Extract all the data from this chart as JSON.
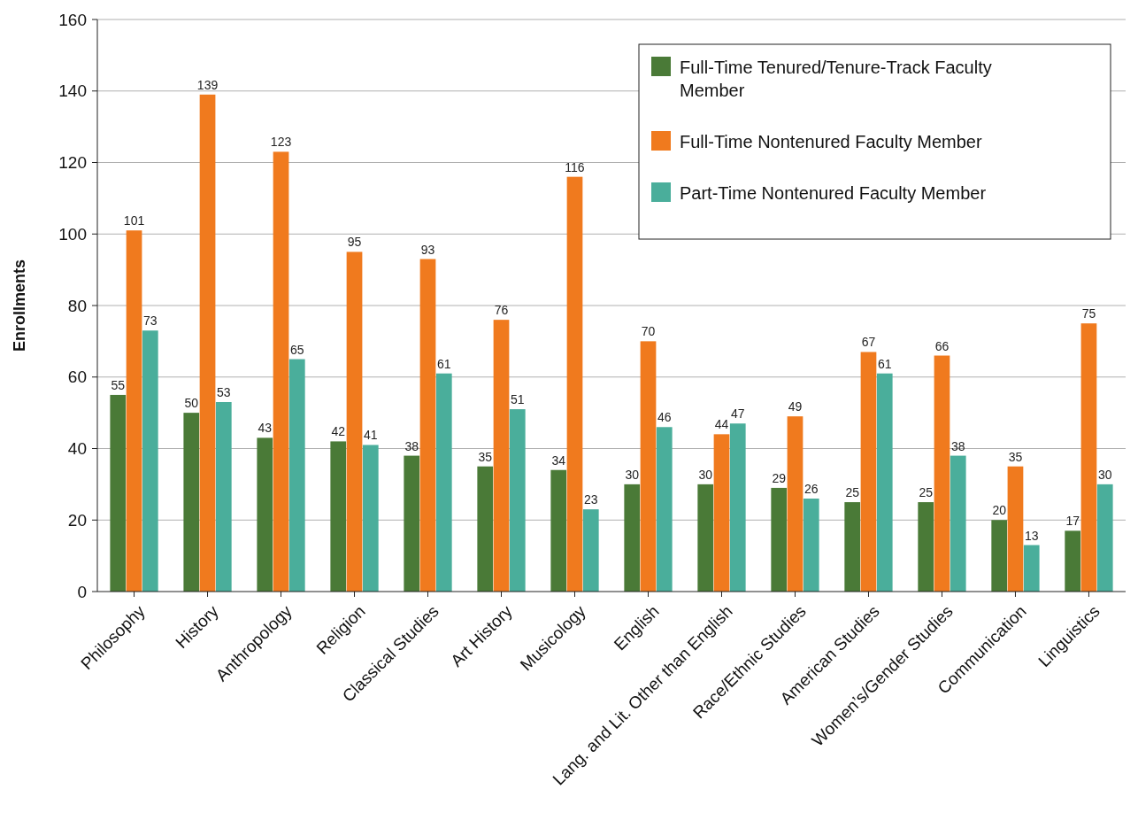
{
  "chart_data": {
    "type": "bar",
    "ylabel": "Enrollments",
    "categories": [
      "Philosophy",
      "History",
      "Anthropology",
      "Religion",
      "Classical Studies",
      "Art History",
      "Musicology",
      "English",
      "Lang. and Lit. Other than English",
      "Race/Ethnic Studies",
      "American Studies",
      "Women’s/Gender Studies",
      "Communication",
      "Linguistics"
    ],
    "series": [
      {
        "name": "Full-Time Tenured/Tenure-Track Faculty Member",
        "color": "#4a7a37",
        "values": [
          55,
          50,
          43,
          42,
          38,
          35,
          34,
          30,
          30,
          29,
          25,
          25,
          20,
          17
        ]
      },
      {
        "name": "Full-Time Nontenured Faculty Member",
        "color": "#f07a1e",
        "values": [
          101,
          139,
          123,
          95,
          93,
          76,
          116,
          70,
          44,
          49,
          67,
          66,
          35,
          75
        ]
      },
      {
        "name": "Part-Time Nontenured Faculty Member",
        "color": "#4aae9b",
        "values": [
          73,
          53,
          65,
          41,
          61,
          51,
          23,
          46,
          47,
          26,
          61,
          38,
          13,
          30
        ]
      }
    ],
    "ylim": [
      0,
      160
    ],
    "yticks": [
      0,
      20,
      40,
      60,
      80,
      100,
      120,
      140,
      160
    ],
    "grid": "y",
    "data_labels": true,
    "legend": "top right"
  }
}
